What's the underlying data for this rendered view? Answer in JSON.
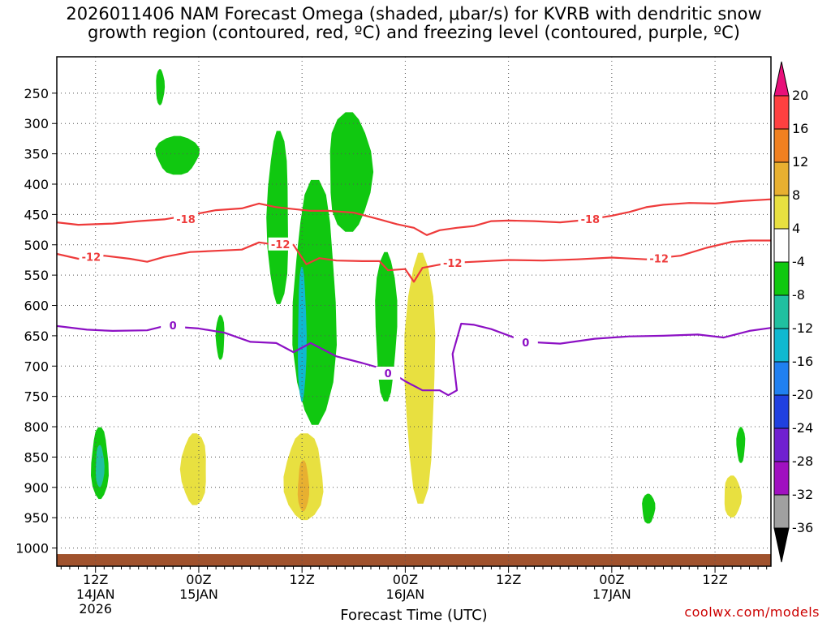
{
  "chart_data": {
    "type": "time-height cross section",
    "title_line1": "2026011406 NAM Forecast Omega (shaded, μbar/s) for KVRB with dendritic snow",
    "title_line2": "growth region (contoured, red, ºC) and freezing level (contoured, purple, ºC)",
    "xlabel": "Forecast Time (UTC)",
    "credit": "coolwx.com/models",
    "y_axis": {
      "type": "pressure (hPa), reversed",
      "range": [
        1030,
        190
      ],
      "tick_labels": [
        "250",
        "300",
        "350",
        "400",
        "450",
        "500",
        "550",
        "600",
        "650",
        "700",
        "750",
        "800",
        "850",
        "900",
        "950",
        "1000"
      ]
    },
    "x_axis": {
      "range_hours_from_14JAN_00Z": [
        7.5,
        90.5
      ],
      "ticks": [
        {
          "hour": 12,
          "label": "12Z",
          "date": "14JAN",
          "year": "2026"
        },
        {
          "hour": 24,
          "label": "00Z",
          "date": "15JAN",
          "year": ""
        },
        {
          "hour": 36,
          "label": "12Z",
          "date": "",
          "year": ""
        },
        {
          "hour": 48,
          "label": "00Z",
          "date": "16JAN",
          "year": ""
        },
        {
          "hour": 60,
          "label": "12Z",
          "date": "",
          "year": ""
        },
        {
          "hour": 72,
          "label": "00Z",
          "date": "17JAN",
          "year": ""
        },
        {
          "hour": 84,
          "label": "12Z",
          "date": "",
          "year": ""
        }
      ]
    },
    "colorbar": {
      "labels": [
        "20",
        "16",
        "12",
        "8",
        "4",
        "-4",
        "-8",
        "-12",
        "-16",
        "-20",
        "-24",
        "-28",
        "-32",
        "-36"
      ],
      "bands": [
        {
          "from": 20,
          "to": 16,
          "color": "#ff4040"
        },
        {
          "from": 16,
          "to": 12,
          "color": "#f08020"
        },
        {
          "from": 12,
          "to": 8,
          "color": "#e8b030"
        },
        {
          "from": 8,
          "to": 4,
          "color": "#e8e040"
        },
        {
          "from": 4,
          "to": -4,
          "color": "#ffffff"
        },
        {
          "from": -4,
          "to": -8,
          "color": "#10c810"
        },
        {
          "from": -8,
          "to": -12,
          "color": "#20c0a0"
        },
        {
          "from": -12,
          "to": -16,
          "color": "#10b8d0"
        },
        {
          "from": -16,
          "to": -20,
          "color": "#2080f0"
        },
        {
          "from": -20,
          "to": -24,
          "color": "#2040e0"
        },
        {
          "from": -24,
          "to": -28,
          "color": "#7020d0"
        },
        {
          "from": -28,
          "to": -32,
          "color": "#a010c0"
        },
        {
          "from": -32,
          "to": -36,
          "color": "#a0a0a0"
        }
      ],
      "top_arrow_color": "#e8107a",
      "bottom_arrow_color": "#000000"
    },
    "contours": [
      {
        "name": "-18 C isotherm",
        "label": "-18",
        "color": "#ee3b3b",
        "points": [
          [
            7.5,
            463
          ],
          [
            10,
            467
          ],
          [
            14,
            465
          ],
          [
            17,
            461
          ],
          [
            20,
            458
          ],
          [
            23,
            451
          ],
          [
            26,
            443
          ],
          [
            29,
            440
          ],
          [
            31,
            432
          ],
          [
            33,
            438
          ],
          [
            35,
            441
          ],
          [
            37,
            444
          ],
          [
            39,
            444
          ],
          [
            42,
            447
          ],
          [
            45,
            458
          ],
          [
            47,
            466
          ],
          [
            49,
            472
          ],
          [
            50.5,
            484
          ],
          [
            52,
            476
          ],
          [
            54,
            472
          ],
          [
            56,
            469
          ],
          [
            58,
            461
          ],
          [
            60,
            460
          ],
          [
            63,
            461
          ],
          [
            66,
            463
          ],
          [
            69,
            459
          ],
          [
            72,
            452
          ],
          [
            74,
            446
          ],
          [
            76,
            438
          ],
          [
            78,
            434
          ],
          [
            81,
            431
          ],
          [
            84,
            432
          ],
          [
            87,
            428
          ],
          [
            90.5,
            425
          ]
        ],
        "label_positions": [
          [
            22.5,
            459
          ],
          [
            69.5,
            459
          ]
        ]
      },
      {
        "name": "-12 C isotherm",
        "label": "-12",
        "color": "#ee3b3b",
        "points": [
          [
            7.5,
            515
          ],
          [
            10,
            523
          ],
          [
            13,
            518
          ],
          [
            16,
            523
          ],
          [
            18,
            528
          ],
          [
            20,
            520
          ],
          [
            23,
            512
          ],
          [
            26,
            510
          ],
          [
            29,
            508
          ],
          [
            31,
            496
          ],
          [
            33,
            500
          ],
          [
            35,
            500
          ],
          [
            36.5,
            532
          ],
          [
            38,
            522
          ],
          [
            40,
            526
          ],
          [
            43,
            527
          ],
          [
            45,
            527
          ],
          [
            46,
            542
          ],
          [
            48,
            540
          ],
          [
            49,
            561
          ],
          [
            50,
            538
          ],
          [
            53,
            530
          ],
          [
            56,
            528
          ],
          [
            60,
            525
          ],
          [
            64,
            526
          ],
          [
            68,
            524
          ],
          [
            72,
            521
          ],
          [
            76,
            524
          ],
          [
            80,
            518
          ],
          [
            83,
            505
          ],
          [
            86,
            495
          ],
          [
            88,
            493
          ],
          [
            90.5,
            493
          ]
        ],
        "label_positions": [
          [
            11.5,
            521
          ],
          [
            33.5,
            500
          ],
          [
            53.5,
            531
          ],
          [
            77.5,
            524
          ]
        ]
      },
      {
        "name": "0 C freezing level",
        "label": "0",
        "color": "#8c10c4",
        "points": [
          [
            7.5,
            634
          ],
          [
            11,
            640
          ],
          [
            14,
            642
          ],
          [
            18,
            641
          ],
          [
            20,
            634
          ],
          [
            24,
            638
          ],
          [
            27,
            645
          ],
          [
            30,
            660
          ],
          [
            33,
            662
          ],
          [
            35,
            677
          ],
          [
            37,
            662
          ],
          [
            40,
            684
          ],
          [
            43,
            695
          ],
          [
            46,
            707
          ],
          [
            48,
            725
          ],
          [
            50,
            740
          ],
          [
            52,
            740
          ],
          [
            53,
            748
          ],
          [
            54,
            740
          ],
          [
            53.5,
            680
          ],
          [
            54.5,
            630
          ],
          [
            56,
            632
          ],
          [
            58,
            639
          ],
          [
            62,
            660
          ],
          [
            66,
            663
          ],
          [
            70,
            655
          ],
          [
            74,
            651
          ],
          [
            78,
            650
          ],
          [
            82,
            648
          ],
          [
            85,
            653
          ],
          [
            88,
            642
          ],
          [
            90.5,
            637
          ]
        ],
        "label_positions": [
          [
            21,
            634
          ],
          [
            46,
            713
          ],
          [
            62,
            662
          ]
        ]
      }
    ],
    "shaded_regions": [
      {
        "omega_bin": "-4 to -8",
        "hours": [
          11.5,
          13.5
        ],
        "pressure_hPa": [
          800,
          920
        ],
        "color": "#10c810"
      },
      {
        "omega_bin": "-8 to -12",
        "hours": [
          12,
          13
        ],
        "pressure_hPa": [
          830,
          900
        ],
        "color": "#20c0a0"
      },
      {
        "omega_bin": "-4 to -8",
        "hours": [
          19,
          20
        ],
        "pressure_hPa": [
          210,
          270
        ],
        "color": "#10c810"
      },
      {
        "omega_bin": "-4 to -8",
        "hours": [
          19,
          24
        ],
        "pressure_hPa": [
          320,
          385
        ],
        "color": "#10c810"
      },
      {
        "omega_bin": "-4 to -8",
        "hours": [
          26,
          27
        ],
        "pressure_hPa": [
          615,
          690
        ],
        "color": "#10c810"
      },
      {
        "omega_bin": "-4 to -8",
        "hours": [
          32,
          34.5
        ],
        "pressure_hPa": [
          310,
          600
        ],
        "color": "#10c810"
      },
      {
        "omega_bin": "-4 to -8",
        "hours": [
          35,
          40
        ],
        "pressure_hPa": [
          390,
          800
        ],
        "color": "#10c810"
      },
      {
        "omega_bin": "-12 to -16",
        "hours": [
          35.5,
          36.5
        ],
        "pressure_hPa": [
          535,
          760
        ],
        "color": "#10b8d0"
      },
      {
        "omega_bin": "-4 to -8",
        "hours": [
          39,
          44
        ],
        "pressure_hPa": [
          280,
          480
        ],
        "color": "#10c810"
      },
      {
        "omega_bin": "-4 to -8",
        "hours": [
          44.5,
          47
        ],
        "pressure_hPa": [
          510,
          760
        ],
        "color": "#10c810"
      },
      {
        "omega_bin": "4 to 8",
        "hours": [
          48,
          51.5
        ],
        "pressure_hPa": [
          510,
          930
        ],
        "color": "#e8e040"
      },
      {
        "omega_bin": "4 to 8",
        "hours": [
          22,
          25
        ],
        "pressure_hPa": [
          810,
          930
        ],
        "color": "#e8e040"
      },
      {
        "omega_bin": "4 to 8",
        "hours": [
          34,
          38.5
        ],
        "pressure_hPa": [
          810,
          955
        ],
        "color": "#e8e040"
      },
      {
        "omega_bin": "8 to 12",
        "hours": [
          35.5,
          36.8
        ],
        "pressure_hPa": [
          855,
          940
        ],
        "color": "#e8b030"
      },
      {
        "omega_bin": "4 to 8",
        "hours": [
          85,
          87
        ],
        "pressure_hPa": [
          880,
          950
        ],
        "color": "#e8e040"
      },
      {
        "omega_bin": "-4 to -8",
        "hours": [
          75.5,
          77
        ],
        "pressure_hPa": [
          910,
          960
        ],
        "color": "#10c810"
      },
      {
        "omega_bin": "-4 to -8",
        "hours": [
          86.5,
          87.5
        ],
        "pressure_hPa": [
          800,
          860
        ],
        "color": "#10c810"
      }
    ]
  }
}
